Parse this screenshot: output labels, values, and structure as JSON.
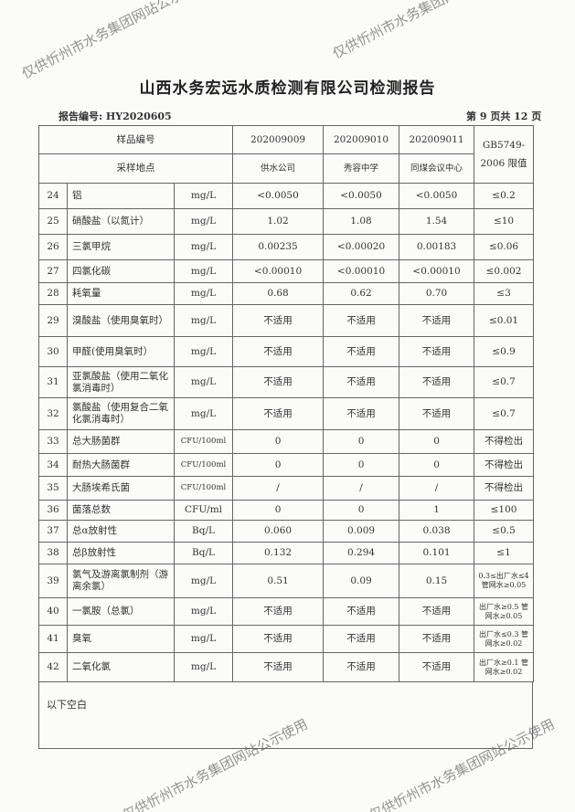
{
  "title": "山西水务宏远水质检测有限公司检测报告",
  "report_no": "报告编号: HY2020605",
  "page_no": "第 9 页共 12 页",
  "header": {
    "sample_no_label": "样品编号",
    "site_label": "采样地点",
    "samples": [
      "202009009",
      "202009010",
      "202009011"
    ],
    "sites": [
      "供水公司",
      "秀容中学",
      "同煤会议中心"
    ],
    "limit_label": "GB5749-2006 限值"
  },
  "rows": [
    {
      "no": "24",
      "name": "铝",
      "unit": "mg/L",
      "v": [
        "<0.0050",
        "<0.0050",
        "<0.0050"
      ],
      "limit": "≤0.2"
    },
    {
      "no": "25",
      "name": "硝酸盐（以氮计）",
      "unit": "mg/L",
      "v": [
        "1.02",
        "1.08",
        "1.54"
      ],
      "limit": "≤10"
    },
    {
      "no": "26",
      "name": "三氯甲烷",
      "unit": "mg/L",
      "v": [
        "0.00235",
        "<0.00020",
        "0.00183"
      ],
      "limit": "≤0.06"
    },
    {
      "no": "27",
      "name": "四氯化碳",
      "unit": "mg/L",
      "v": [
        "<0.00010",
        "<0.00010",
        "<0.00010"
      ],
      "limit": "≤0.002"
    },
    {
      "no": "28",
      "name": "耗氧量",
      "unit": "mg/L",
      "v": [
        "0.68",
        "0.62",
        "0.70"
      ],
      "limit": "≤3"
    },
    {
      "no": "29",
      "name": "溴酸盐（使用臭氧时）",
      "unit": "mg/L",
      "v": [
        "不适用",
        "不适用",
        "不适用"
      ],
      "limit": "≤0.01"
    },
    {
      "no": "30",
      "name": "甲醛(使用臭氧时）",
      "unit": "mg/L",
      "v": [
        "不适用",
        "不适用",
        "不适用"
      ],
      "limit": "≤0.9"
    },
    {
      "no": "31",
      "name": "亚氯酸盐（使用二氧化氯消毒时）",
      "unit": "mg/L",
      "v": [
        "不适用",
        "不适用",
        "不适用"
      ],
      "limit": "≤0.7"
    },
    {
      "no": "32",
      "name": "氯酸盐（使用复合二氧化氯消毒时）",
      "unit": "mg/L",
      "v": [
        "不适用",
        "不适用",
        "不适用"
      ],
      "limit": "≤0.7"
    },
    {
      "no": "33",
      "name": "总大肠菌群",
      "unit": "CFU/100ml",
      "v": [
        "0",
        "0",
        "0"
      ],
      "limit": "不得检出"
    },
    {
      "no": "34",
      "name": "耐热大肠菌群",
      "unit": "CFU/100ml",
      "v": [
        "0",
        "0",
        "0"
      ],
      "limit": "不得检出"
    },
    {
      "no": "35",
      "name": "大肠埃希氏菌",
      "unit": "CFU/100ml",
      "v": [
        "/",
        "/",
        "/"
      ],
      "limit": "不得检出"
    },
    {
      "no": "36",
      "name": "菌落总数",
      "unit": "CFU/ml",
      "v": [
        "0",
        "0",
        "1"
      ],
      "limit": "≤100"
    },
    {
      "no": "37",
      "name": "总α放射性",
      "unit": "Bq/L",
      "v": [
        "0.060",
        "0.009",
        "0.038"
      ],
      "limit": "≤0.5"
    },
    {
      "no": "38",
      "name": "总β放射性",
      "unit": "Bq/L",
      "v": [
        "0.132",
        "0.294",
        "0.101"
      ],
      "limit": "≤1"
    },
    {
      "no": "39",
      "name": "氯气及游离氯制剂（游离余氯）",
      "unit": "mg/L",
      "v": [
        "0.51",
        "0.09",
        "0.15"
      ],
      "limit": "0.3≤出厂水≤4 管网水≥0.05"
    },
    {
      "no": "40",
      "name": "一氯胺（总氯）",
      "unit": "mg/L",
      "v": [
        "不适用",
        "不适用",
        "不适用"
      ],
      "limit": "出厂水≥0.5 管网水≥0.05"
    },
    {
      "no": "41",
      "name": "臭氧",
      "unit": "mg/L",
      "v": [
        "不适用",
        "不适用",
        "不适用"
      ],
      "limit": "出厂水≤0.3 管网水≥0.02"
    },
    {
      "no": "42",
      "name": "二氧化氯",
      "unit": "mg/L",
      "v": [
        "不适用",
        "不适用",
        "不适用"
      ],
      "limit": "出厂水≥0.1 管网水≥0.02"
    }
  ],
  "notes": "以下空白",
  "watermark": "仅供忻州市水务集团网站公示使用"
}
